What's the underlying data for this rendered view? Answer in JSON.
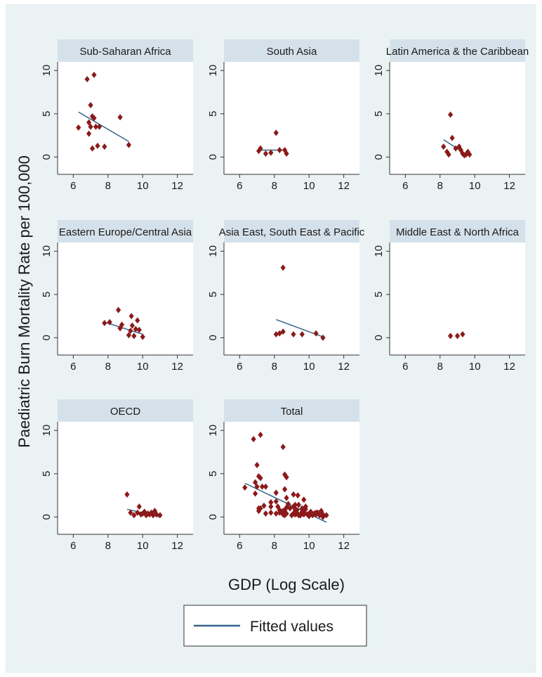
{
  "chart_data": {
    "type": "scatter",
    "layout": "small-multiples 3x3",
    "ylabel": "Paediatric Burn Mortality Rate per 100,000",
    "xlabel": "GDP (Log Scale)",
    "xlim": [
      5.5,
      12.5
    ],
    "ylim": [
      -2,
      11
    ],
    "xticks": [
      6,
      8,
      10,
      12
    ],
    "yticks": [
      0,
      5,
      10
    ],
    "grid": false,
    "marker_color": "#8b1a1a",
    "fit_line_color": "#36648b",
    "header_color": "#d5e1ea",
    "plot_bg": "#ffffff",
    "legend": {
      "position": "bottom",
      "entries": [
        "Fitted values"
      ]
    },
    "panels": [
      {
        "title": "Sub-Saharan Africa",
        "points": [
          [
            6.3,
            3.4
          ],
          [
            6.8,
            9.0
          ],
          [
            6.9,
            4.0
          ],
          [
            6.9,
            2.7
          ],
          [
            7.0,
            6.0
          ],
          [
            7.0,
            3.5
          ],
          [
            7.1,
            4.7
          ],
          [
            7.1,
            1.0
          ],
          [
            7.2,
            9.5
          ],
          [
            7.2,
            4.5
          ],
          [
            7.3,
            3.5
          ],
          [
            7.4,
            1.3
          ],
          [
            7.5,
            3.5
          ],
          [
            7.8,
            1.2
          ],
          [
            8.7,
            4.6
          ],
          [
            9.2,
            1.4
          ]
        ],
        "fit": [
          [
            6.3,
            5.2
          ],
          [
            9.2,
            1.8
          ]
        ]
      },
      {
        "title": "South Asia",
        "points": [
          [
            7.1,
            0.7
          ],
          [
            7.2,
            1.0
          ],
          [
            7.5,
            0.4
          ],
          [
            7.8,
            0.5
          ],
          [
            8.1,
            2.8
          ],
          [
            8.3,
            0.8
          ],
          [
            8.6,
            0.8
          ],
          [
            8.7,
            0.4
          ]
        ],
        "fit": [
          [
            7.1,
            0.8
          ],
          [
            8.7,
            0.8
          ]
        ]
      },
      {
        "title": "Latin America & the Caribbean",
        "points": [
          [
            8.2,
            1.2
          ],
          [
            8.4,
            0.6
          ],
          [
            8.5,
            0.3
          ],
          [
            8.6,
            4.9
          ],
          [
            8.7,
            2.2
          ],
          [
            8.9,
            1.0
          ],
          [
            9.1,
            1.2
          ],
          [
            9.2,
            0.8
          ],
          [
            9.3,
            0.4
          ],
          [
            9.4,
            0.2
          ],
          [
            9.5,
            0.3
          ],
          [
            9.6,
            0.6
          ],
          [
            9.7,
            0.3
          ]
        ],
        "fit": [
          [
            8.2,
            2.0
          ],
          [
            9.7,
            0.1
          ]
        ]
      },
      {
        "title": "Eastern Europe/Central Asia",
        "points": [
          [
            7.8,
            1.7
          ],
          [
            8.1,
            1.8
          ],
          [
            8.6,
            3.2
          ],
          [
            8.7,
            1.1
          ],
          [
            8.8,
            1.5
          ],
          [
            9.2,
            0.3
          ],
          [
            9.3,
            0.8
          ],
          [
            9.35,
            2.5
          ],
          [
            9.4,
            1.4
          ],
          [
            9.5,
            0.2
          ],
          [
            9.6,
            1.0
          ],
          [
            9.7,
            2.0
          ],
          [
            9.8,
            0.9
          ],
          [
            10.0,
            0.1
          ]
        ],
        "fit": [
          [
            7.8,
            1.8
          ],
          [
            10.0,
            0.4
          ]
        ]
      },
      {
        "title": "Asia East, South East & Pacific",
        "points": [
          [
            8.1,
            0.4
          ],
          [
            8.3,
            0.5
          ],
          [
            8.5,
            0.7
          ],
          [
            8.5,
            8.1
          ],
          [
            9.1,
            0.4
          ],
          [
            9.6,
            0.4
          ],
          [
            10.4,
            0.5
          ],
          [
            10.8,
            0.0
          ]
        ],
        "fit": [
          [
            8.1,
            2.1
          ],
          [
            10.8,
            0.1
          ]
        ]
      },
      {
        "title": "Middle East & North Africa",
        "points": [
          [
            8.6,
            0.2
          ],
          [
            9.0,
            0.2
          ],
          [
            9.3,
            0.4
          ]
        ],
        "fit": []
      },
      {
        "title": "OECD",
        "points": [
          [
            9.1,
            2.6
          ],
          [
            9.3,
            0.5
          ],
          [
            9.5,
            0.2
          ],
          [
            9.7,
            0.5
          ],
          [
            9.8,
            1.2
          ],
          [
            9.9,
            0.3
          ],
          [
            10.0,
            0.4
          ],
          [
            10.1,
            0.6
          ],
          [
            10.2,
            0.2
          ],
          [
            10.3,
            0.4
          ],
          [
            10.4,
            0.3
          ],
          [
            10.5,
            0.5
          ],
          [
            10.6,
            0.2
          ],
          [
            10.7,
            0.7
          ],
          [
            10.8,
            0.3
          ],
          [
            11.0,
            0.2
          ]
        ],
        "fit": [
          [
            9.1,
            0.9
          ],
          [
            11.0,
            0.0
          ]
        ]
      },
      {
        "title": "Total",
        "points": [
          [
            6.3,
            3.4
          ],
          [
            6.8,
            9.0
          ],
          [
            6.9,
            4.0
          ],
          [
            6.9,
            2.7
          ],
          [
            7.0,
            6.0
          ],
          [
            7.0,
            3.5
          ],
          [
            7.1,
            4.7
          ],
          [
            7.1,
            1.0
          ],
          [
            7.2,
            9.5
          ],
          [
            7.2,
            4.5
          ],
          [
            7.3,
            3.5
          ],
          [
            7.4,
            1.3
          ],
          [
            7.5,
            3.5
          ],
          [
            7.8,
            1.2
          ],
          [
            8.7,
            4.6
          ],
          [
            9.2,
            1.4
          ],
          [
            7.1,
            0.7
          ],
          [
            7.2,
            1.0
          ],
          [
            7.5,
            0.4
          ],
          [
            7.8,
            0.5
          ],
          [
            8.1,
            2.8
          ],
          [
            8.3,
            0.8
          ],
          [
            8.6,
            0.8
          ],
          [
            8.7,
            0.4
          ],
          [
            8.2,
            1.2
          ],
          [
            8.4,
            0.6
          ],
          [
            8.5,
            0.3
          ],
          [
            8.6,
            4.9
          ],
          [
            8.7,
            2.2
          ],
          [
            8.9,
            1.0
          ],
          [
            9.1,
            1.2
          ],
          [
            9.2,
            0.8
          ],
          [
            9.3,
            0.4
          ],
          [
            9.4,
            0.2
          ],
          [
            9.5,
            0.3
          ],
          [
            9.6,
            0.6
          ],
          [
            9.7,
            0.3
          ],
          [
            7.8,
            1.7
          ],
          [
            8.1,
            1.8
          ],
          [
            8.6,
            3.2
          ],
          [
            8.7,
            1.1
          ],
          [
            8.8,
            1.5
          ],
          [
            9.2,
            0.3
          ],
          [
            9.3,
            0.8
          ],
          [
            9.35,
            2.5
          ],
          [
            9.4,
            1.4
          ],
          [
            9.5,
            0.2
          ],
          [
            9.6,
            1.0
          ],
          [
            9.7,
            2.0
          ],
          [
            9.8,
            0.9
          ],
          [
            10.0,
            0.1
          ],
          [
            8.1,
            0.4
          ],
          [
            8.3,
            0.5
          ],
          [
            8.5,
            0.7
          ],
          [
            8.5,
            8.1
          ],
          [
            9.1,
            0.4
          ],
          [
            9.6,
            0.4
          ],
          [
            10.4,
            0.5
          ],
          [
            10.8,
            0.0
          ],
          [
            8.6,
            0.2
          ],
          [
            9.0,
            0.2
          ],
          [
            9.3,
            0.4
          ],
          [
            9.1,
            2.6
          ],
          [
            9.3,
            0.5
          ],
          [
            9.5,
            0.2
          ],
          [
            9.7,
            0.5
          ],
          [
            9.8,
            1.2
          ],
          [
            9.9,
            0.3
          ],
          [
            10.0,
            0.4
          ],
          [
            10.1,
            0.6
          ],
          [
            10.2,
            0.2
          ],
          [
            10.3,
            0.4
          ],
          [
            10.4,
            0.3
          ],
          [
            10.5,
            0.5
          ],
          [
            10.6,
            0.2
          ],
          [
            10.7,
            0.7
          ],
          [
            10.8,
            0.3
          ],
          [
            11.0,
            0.2
          ]
        ],
        "fit": [
          [
            6.3,
            3.9
          ],
          [
            11.0,
            -0.6
          ]
        ]
      }
    ]
  }
}
